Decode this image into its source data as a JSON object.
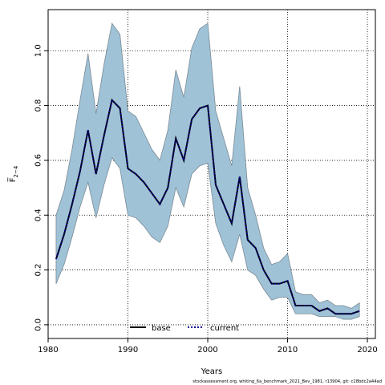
{
  "chart_data": {
    "type": "line",
    "xlabel": "Years",
    "ylabel": "F̅",
    "ylabel_subscript": "2−4",
    "xlim": [
      1980,
      2021
    ],
    "ylim": [
      -0.05,
      1.15
    ],
    "x_ticks": [
      1980,
      1990,
      2000,
      2010,
      2020
    ],
    "y_ticks": [
      "0.0",
      "0.2",
      "0.4",
      "0.6",
      "0.8",
      "1.0"
    ],
    "y_tick_values": [
      0.0,
      0.2,
      0.4,
      0.6,
      0.8,
      1.0
    ],
    "grid": true,
    "legend": {
      "position": "bottom-center",
      "entries": [
        "base",
        "current"
      ]
    },
    "footer": "stockassessment.org, whiting_6a_benchmark_2021_Bev_1981, r13904, git: c28bdc2a44ad",
    "colors": {
      "band": "#9fc2d6",
      "band_edge": "#7a8a96",
      "base": "#000000",
      "current": "#00008b"
    },
    "years": [
      1981,
      1982,
      1983,
      1984,
      1985,
      1986,
      1987,
      1988,
      1989,
      1990,
      1991,
      1992,
      1993,
      1994,
      1995,
      1996,
      1997,
      1998,
      1999,
      2000,
      2001,
      2002,
      2003,
      2004,
      2005,
      2006,
      2007,
      2008,
      2009,
      2010,
      2011,
      2012,
      2013,
      2014,
      2015,
      2016,
      2017,
      2018,
      2019
    ],
    "series": [
      {
        "name": "base",
        "values": [
          0.24,
          0.33,
          0.44,
          0.56,
          0.71,
          0.55,
          0.69,
          0.82,
          0.79,
          0.57,
          0.55,
          0.52,
          0.48,
          0.44,
          0.5,
          0.68,
          0.6,
          0.75,
          0.79,
          0.8,
          0.51,
          0.44,
          0.37,
          0.54,
          0.31,
          0.28,
          0.2,
          0.15,
          0.15,
          0.16,
          0.07,
          0.07,
          0.07,
          0.05,
          0.06,
          0.04,
          0.04,
          0.04,
          0.05
        ]
      },
      {
        "name": "current",
        "values": [
          0.24,
          0.33,
          0.44,
          0.56,
          0.71,
          0.55,
          0.69,
          0.82,
          0.79,
          0.57,
          0.55,
          0.52,
          0.48,
          0.44,
          0.5,
          0.68,
          0.6,
          0.75,
          0.79,
          0.8,
          0.51,
          0.44,
          0.37,
          0.54,
          0.31,
          0.28,
          0.2,
          0.15,
          0.15,
          0.16,
          0.07,
          0.07,
          0.07,
          0.05,
          0.06,
          0.04,
          0.04,
          0.04,
          0.05
        ]
      }
    ],
    "confidence_upper": [
      0.4,
      0.49,
      0.64,
      0.82,
      0.99,
      0.77,
      0.95,
      1.1,
      1.06,
      0.78,
      0.76,
      0.7,
      0.64,
      0.6,
      0.71,
      0.93,
      0.83,
      1.01,
      1.08,
      1.1,
      0.78,
      0.68,
      0.58,
      0.87,
      0.5,
      0.4,
      0.28,
      0.22,
      0.23,
      0.26,
      0.12,
      0.11,
      0.11,
      0.08,
      0.09,
      0.07,
      0.07,
      0.06,
      0.08
    ],
    "confidence_lower": [
      0.15,
      0.22,
      0.32,
      0.43,
      0.52,
      0.39,
      0.51,
      0.61,
      0.57,
      0.4,
      0.39,
      0.36,
      0.32,
      0.3,
      0.36,
      0.5,
      0.43,
      0.55,
      0.58,
      0.59,
      0.37,
      0.29,
      0.23,
      0.33,
      0.2,
      0.18,
      0.13,
      0.09,
      0.1,
      0.1,
      0.04,
      0.04,
      0.04,
      0.03,
      0.03,
      0.03,
      0.02,
      0.02,
      0.03
    ]
  }
}
